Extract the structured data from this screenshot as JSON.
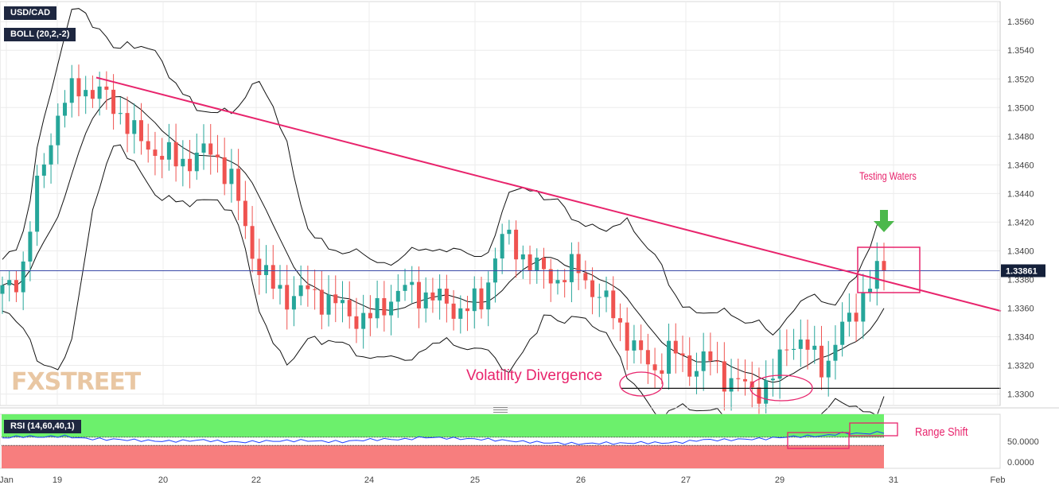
{
  "instrument": "USD/CAD",
  "indicator_main": "BOLL (20,2,-2)",
  "indicator_sub": "RSI (14,60,40,1)",
  "watermark": "FXSTREET",
  "current_price": "1.33861",
  "colors": {
    "up": "#26a69a",
    "down": "#ef5350",
    "trend": "#e8246c",
    "annotation": "#e8246c",
    "rsi_line": "#1e40ff",
    "rsi_upper_zone": "#6cf06c",
    "rsi_lower_zone": "#f77e7e",
    "price_line": "#3a4aa8",
    "arrow": "#4cb84c"
  },
  "annotations": {
    "testing_waters": "Testing Waters",
    "volatility_divergence": "Volatility Divergence",
    "range_shift": "Range  Shift"
  },
  "chart_data": {
    "type": "candlestick",
    "title": "USD/CAD",
    "y_axis_ticks": [
      "1.3560",
      "1.3540",
      "1.3520",
      "1.3500",
      "1.3480",
      "1.3460",
      "1.3440",
      "1.3420",
      "1.3400",
      "1.3380",
      "1.3360",
      "1.3340",
      "1.3320",
      "1.3300"
    ],
    "ylim": [
      1.3292,
      1.3574
    ],
    "x_axis_ticks": [
      "Jan",
      "19",
      "20",
      "22",
      "24",
      "25",
      "26",
      "27",
      "29",
      "31",
      "Feb"
    ],
    "candle_count": 128,
    "price_anchors": [
      1.337,
      1.3385,
      1.3455,
      1.35,
      1.3515,
      1.351,
      1.35,
      1.3478,
      1.347,
      1.3462,
      1.3465,
      1.347,
      1.3448,
      1.34,
      1.3375,
      1.3368,
      1.3372,
      1.3365,
      1.3358,
      1.335,
      1.3365,
      1.3373,
      1.337,
      1.3364,
      1.3358,
      1.3365,
      1.341,
      1.34,
      1.3385,
      1.3381,
      1.3388,
      1.337,
      1.3355,
      1.333,
      1.3318,
      1.333,
      1.3318,
      1.3324,
      1.3308,
      1.3305,
      1.3303,
      1.334,
      1.333,
      1.332,
      1.335,
      1.337,
      1.339
    ],
    "rsi": {
      "levels": [
        60,
        40
      ],
      "y_axis_ticks": [
        "50.0000",
        "0.0000"
      ],
      "ylim": [
        -15,
        115
      ],
      "anchors": [
        58,
        62,
        60,
        63,
        57,
        55,
        54,
        52,
        50,
        51,
        53,
        49,
        48,
        50,
        51,
        52,
        50,
        49,
        53,
        55,
        54,
        60,
        58,
        56,
        55,
        52,
        49,
        47,
        45,
        44,
        46,
        45,
        47,
        46,
        48,
        54,
        53,
        55,
        56,
        60,
        62,
        63,
        70,
        68,
        72
      ]
    },
    "trendlines": [
      {
        "name": "descending resistance",
        "from": [
          "19",
          1.3521
        ],
        "to": [
          "31+",
          1.3358
        ]
      },
      {
        "name": "support",
        "value": 1.3304
      }
    ]
  }
}
